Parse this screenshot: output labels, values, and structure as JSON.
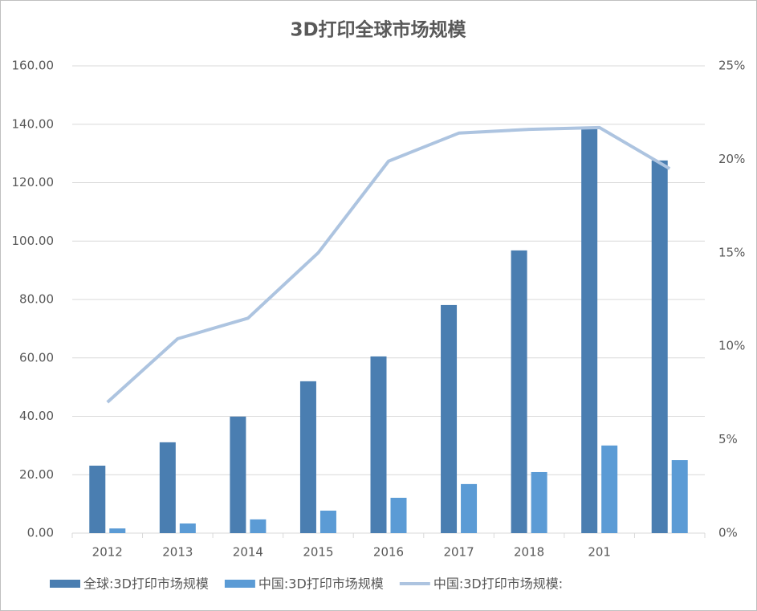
{
  "chart_data": {
    "type": "bar",
    "title": "3D打印全球市场规模",
    "categories": [
      "2012",
      "2013",
      "2014",
      "2015",
      "2016",
      "2017",
      "2018",
      "201",
      null
    ],
    "series": [
      {
        "name": "全球:3D打印市场规模",
        "color": "#4a7eb1",
        "values": [
          23.1,
          31.1,
          39.9,
          52,
          60.5,
          78.1,
          96.8,
          138.3,
          127.6
        ]
      },
      {
        "name": "中国:3D打印市场规模",
        "color": "#5b9bd5",
        "values": [
          1.6,
          3.3,
          4.7,
          7.7,
          12.1,
          16.8,
          20.9,
          30,
          25
        ]
      },
      {
        "name": "中国:3D打印市场规模:",
        "color": "#adc4e0",
        "type": "line",
        "axis": "y2",
        "values": [
          7.0,
          10.4,
          11.5,
          15.0,
          19.9,
          21.4,
          21.6,
          21.7,
          19.5
        ]
      }
    ],
    "ylim": [
      0,
      160
    ],
    "yticks": [
      {
        "value": 0,
        "label": "0.00"
      },
      {
        "value": 20,
        "label": "20.00"
      },
      {
        "value": 40,
        "label": "40.00"
      },
      {
        "value": 60,
        "label": "60.00"
      },
      {
        "value": 80,
        "label": "80.00"
      },
      {
        "value": 100,
        "label": "100.00"
      },
      {
        "value": 120,
        "label": "120.00"
      },
      {
        "value": 140,
        "label": "140.00"
      },
      {
        "value": 160,
        "label": "160.00"
      }
    ],
    "y2lim": [
      0,
      25
    ],
    "y2ticks": [
      {
        "value": 0,
        "label": "0%"
      },
      {
        "value": 5,
        "label": "5%"
      },
      {
        "value": 10,
        "label": "10%"
      },
      {
        "value": 15,
        "label": "15%"
      },
      {
        "value": 20,
        "label": "20%"
      },
      {
        "value": 25,
        "label": "25%"
      }
    ],
    "grid": true,
    "legend": "bottom"
  }
}
